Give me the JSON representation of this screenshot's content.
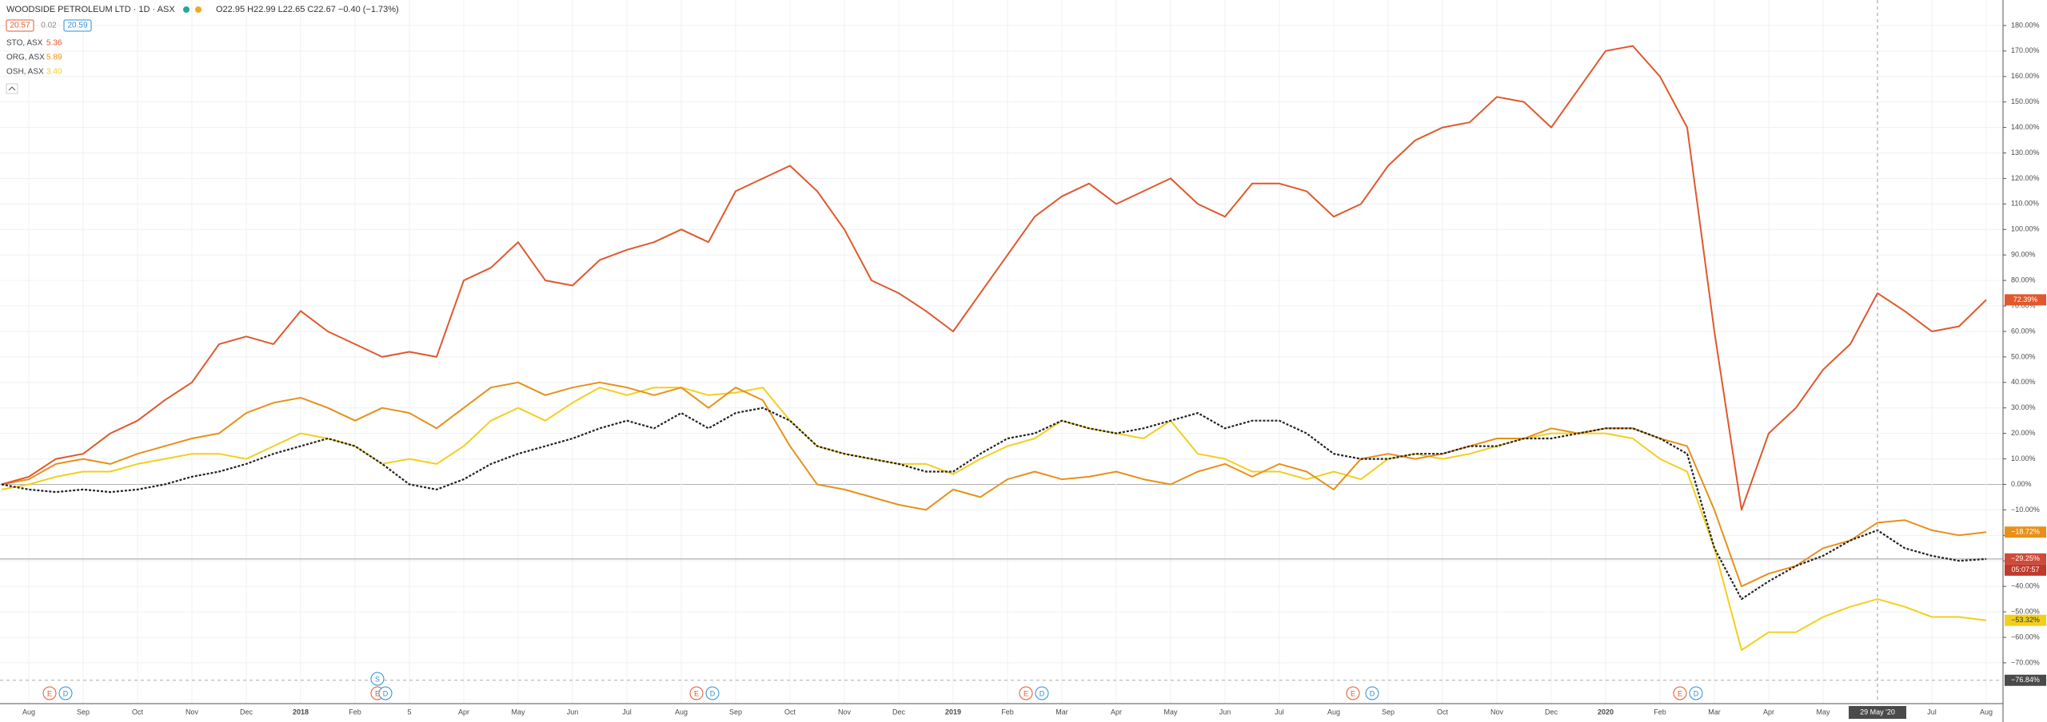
{
  "chart_data": {
    "type": "line",
    "title": "WOODSIDE PETROLEUM LTD · 1D · ASX",
    "ohlc_text": "O22.95 H22.99 L22.65 C22.67 −0.40 (−1.73%)",
    "price_boxes": [
      "20.57",
      "0.02",
      "20.59"
    ],
    "categories": [
      null,
      "Aug",
      null,
      "Sep",
      null,
      "Oct",
      null,
      "Nov",
      null,
      "Dec",
      null,
      "2018",
      null,
      "Feb",
      null,
      "5",
      null,
      "Apr",
      null,
      "May",
      null,
      "Jun",
      null,
      "Jul",
      null,
      "Aug",
      null,
      "Sep",
      null,
      "Oct",
      null,
      "Nov",
      null,
      "Dec",
      null,
      "2019",
      null,
      "Feb",
      null,
      "Mar",
      null,
      "Apr",
      null,
      "May",
      null,
      "Jun",
      null,
      "Jul",
      null,
      "Aug",
      null,
      "Sep",
      null,
      "Oct",
      null,
      "Nov",
      null,
      "Dec",
      null,
      "2020",
      null,
      "Feb",
      null,
      "Mar",
      null,
      "Apr",
      null,
      "May",
      null,
      "29 May '20",
      null,
      "Jul",
      null,
      "Aug"
    ],
    "main_series": {
      "color": "#222222",
      "last_label": "−29.25%",
      "countdown": "05:07:57",
      "values": [
        0,
        -2,
        -3,
        -2,
        -3,
        -2,
        0,
        3,
        5,
        8,
        12,
        15,
        18,
        15,
        8,
        0,
        -2,
        2,
        8,
        12,
        15,
        18,
        22,
        25,
        22,
        28,
        22,
        28,
        30,
        25,
        15,
        12,
        10,
        8,
        5,
        5,
        12,
        18,
        20,
        25,
        22,
        20,
        22,
        25,
        28,
        22,
        25,
        25,
        20,
        12,
        10,
        10,
        12,
        12,
        15,
        15,
        18,
        18,
        20,
        22,
        22,
        18,
        12,
        -25,
        -45,
        -38,
        -32,
        -28,
        -22,
        -18,
        -25,
        -28,
        -30,
        -29.25
      ]
    },
    "series": [
      {
        "name": "STO, ASX",
        "price": "5.36",
        "color": "#e0582c",
        "last_label": "72.39%",
        "values": [
          0,
          3,
          10,
          12,
          20,
          25,
          33,
          40,
          55,
          58,
          55,
          68,
          60,
          55,
          50,
          52,
          50,
          80,
          85,
          95,
          80,
          78,
          88,
          92,
          95,
          100,
          95,
          115,
          120,
          125,
          115,
          100,
          80,
          75,
          68,
          60,
          75,
          90,
          105,
          113,
          118,
          110,
          115,
          120,
          110,
          105,
          118,
          118,
          115,
          105,
          110,
          125,
          135,
          140,
          142,
          152,
          150,
          140,
          155,
          170,
          172,
          160,
          140,
          60,
          -10,
          20,
          30,
          45,
          55,
          75,
          68,
          60,
          62,
          72.39
        ]
      },
      {
        "name": "ORG, ASX",
        "price": "5.89",
        "color": "#e8901a",
        "last_label": "−18.72%",
        "values": [
          0,
          2,
          8,
          10,
          8,
          12,
          15,
          18,
          20,
          28,
          32,
          34,
          30,
          25,
          30,
          28,
          22,
          30,
          38,
          40,
          35,
          38,
          40,
          38,
          35,
          38,
          30,
          38,
          33,
          15,
          0,
          -2,
          -5,
          -8,
          -10,
          -2,
          -5,
          2,
          5,
          2,
          3,
          5,
          2,
          0,
          5,
          8,
          3,
          8,
          5,
          -2,
          10,
          12,
          10,
          12,
          15,
          18,
          18,
          22,
          20,
          22,
          22,
          18,
          15,
          -10,
          -40,
          -35,
          -32,
          -25,
          -22,
          -15,
          -14,
          -18,
          -20,
          -18.72
        ]
      },
      {
        "name": "OSH, ASX",
        "price": "3.40",
        "color": "#f2cf1d",
        "last_label": "−53.32%",
        "values": [
          -2,
          0,
          3,
          5,
          5,
          8,
          10,
          12,
          12,
          10,
          15,
          20,
          18,
          15,
          8,
          10,
          8,
          15,
          25,
          30,
          25,
          32,
          38,
          35,
          38,
          38,
          35,
          36,
          38,
          25,
          15,
          12,
          10,
          8,
          8,
          4,
          10,
          15,
          18,
          25,
          22,
          20,
          18,
          25,
          12,
          10,
          5,
          5,
          2,
          5,
          2,
          10,
          12,
          10,
          12,
          15,
          18,
          20,
          20,
          20,
          18,
          10,
          5,
          -25,
          -65,
          -58,
          -58,
          -52,
          -48,
          -45,
          -48,
          -52,
          -52,
          -53.32
        ]
      }
    ],
    "crosshair": {
      "value": -76.84,
      "label": "−76.84%"
    },
    "event_markers": [
      "E",
      "D",
      "S",
      "E",
      "D",
      "E",
      "D",
      "E",
      "D",
      "E",
      "D",
      "E",
      "D"
    ],
    "ylim": [
      -86,
      190
    ],
    "yticks": [
      {
        "value": 180,
        "label": "180.00%"
      },
      {
        "value": 170,
        "label": "170.00%"
      },
      {
        "value": 160,
        "label": "160.00%"
      },
      {
        "value": 150,
        "label": "150.00%"
      },
      {
        "value": 140,
        "label": "140.00%"
      },
      {
        "value": 130,
        "label": "130.00%"
      },
      {
        "value": 120,
        "label": "120.00%"
      },
      {
        "value": 110,
        "label": "110.00%"
      },
      {
        "value": 100,
        "label": "100.00%"
      },
      {
        "value": 90,
        "label": "90.00%"
      },
      {
        "value": 80,
        "label": "80.00%"
      },
      {
        "value": 70,
        "label": "70.00%"
      },
      {
        "value": 60,
        "label": "60.00%"
      },
      {
        "value": 50,
        "label": "50.00%"
      },
      {
        "value": 40,
        "label": "40.00%"
      },
      {
        "value": 30,
        "label": "30.00%"
      },
      {
        "value": 20,
        "label": "20.00%"
      },
      {
        "value": 10,
        "label": "10.00%"
      },
      {
        "value": 0,
        "label": "0.00%"
      },
      {
        "value": -10,
        "label": "−10.00%"
      },
      {
        "value": -20,
        "label": "−20.00%"
      },
      {
        "value": -30,
        "label": "−30.00%"
      },
      {
        "value": -40,
        "label": "−40.00%"
      },
      {
        "value": -50,
        "label": "−50.00%"
      },
      {
        "value": -60,
        "label": "−60.00%"
      },
      {
        "value": -70,
        "label": "−70.00%"
      }
    ],
    "grid": true
  }
}
